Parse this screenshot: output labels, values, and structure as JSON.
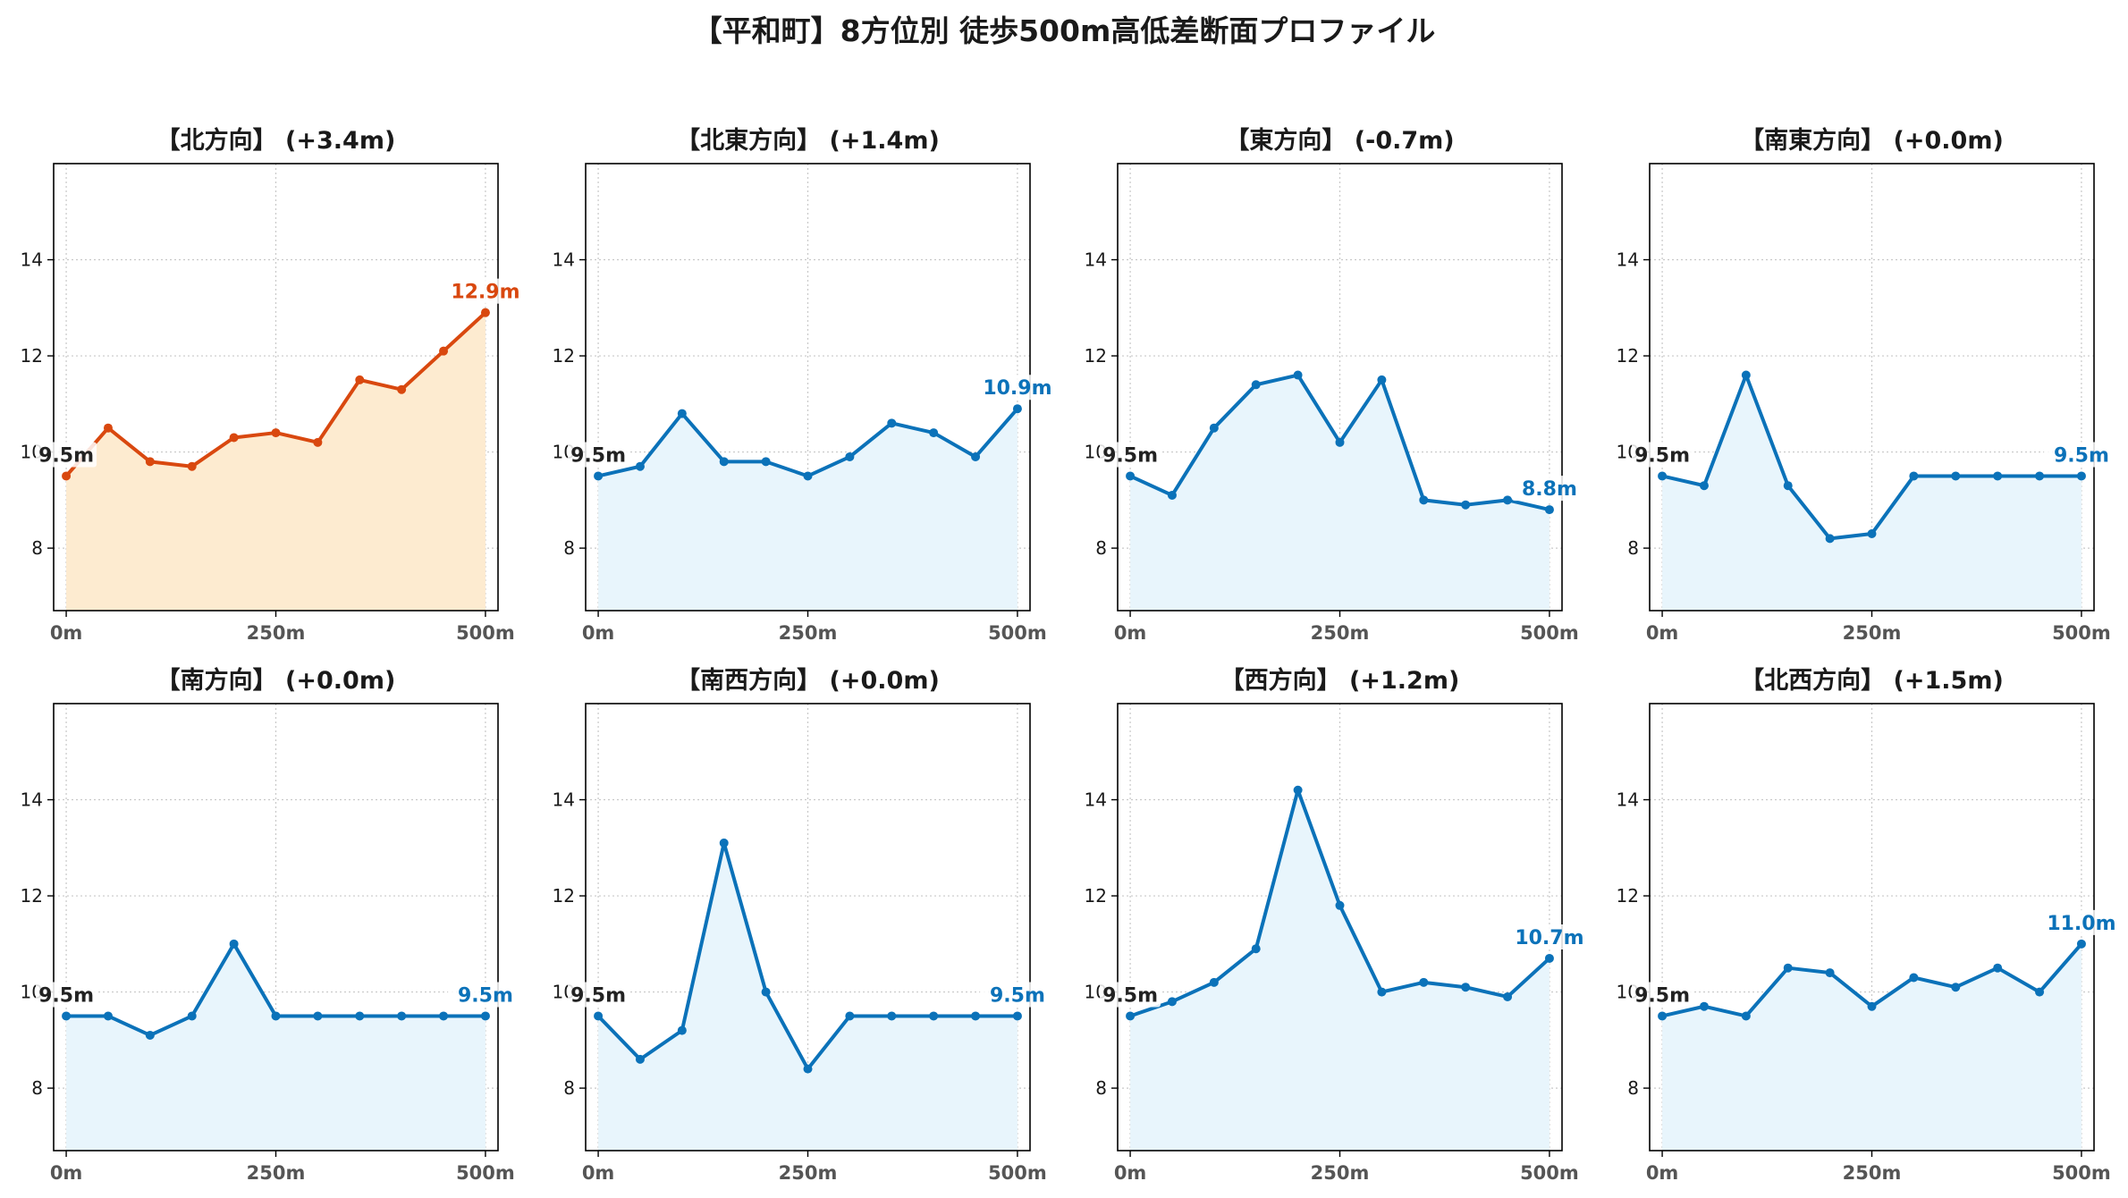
{
  "title": "【平和町】8方位別 徒歩500m高低差断面プロファイル",
  "colors": {
    "up_line": "#d9480f",
    "up_fill": "#fdebd0",
    "flat_line": "#0b72b9",
    "flat_fill": "#e8f5fc",
    "grid": "#c8c8c8",
    "start_label": "#222222"
  },
  "chart_data": [
    {
      "type": "area",
      "title": "【北方向】 (+3.4m)",
      "trend": "up",
      "x": [
        0,
        50,
        100,
        150,
        200,
        250,
        300,
        350,
        400,
        450,
        500
      ],
      "y": [
        9.5,
        10.5,
        9.8,
        9.7,
        10.3,
        10.4,
        10.2,
        11.5,
        11.3,
        12.1,
        12.9
      ],
      "start_label": "9.5m",
      "end_label": "12.9m",
      "xticks": [
        "0m",
        "250m",
        "500m"
      ],
      "yticks": [
        "8",
        "10",
        "12",
        "14"
      ],
      "xlim": [
        -15,
        515
      ],
      "ylim": [
        6.7,
        16.0
      ],
      "grid": true
    },
    {
      "type": "area",
      "title": "【北東方向】 (+1.4m)",
      "trend": "flat",
      "x": [
        0,
        50,
        100,
        150,
        200,
        250,
        300,
        350,
        400,
        450,
        500
      ],
      "y": [
        9.5,
        9.7,
        10.8,
        9.8,
        9.8,
        9.5,
        9.9,
        10.6,
        10.4,
        9.9,
        10.9
      ],
      "start_label": "9.5m",
      "end_label": "10.9m",
      "xticks": [
        "0m",
        "250m",
        "500m"
      ],
      "yticks": [
        "8",
        "10",
        "12",
        "14"
      ],
      "xlim": [
        -15,
        515
      ],
      "ylim": [
        6.7,
        16.0
      ],
      "grid": true
    },
    {
      "type": "area",
      "title": "【東方向】 (-0.7m)",
      "trend": "flat",
      "x": [
        0,
        50,
        100,
        150,
        200,
        250,
        300,
        350,
        400,
        450,
        500
      ],
      "y": [
        9.5,
        9.1,
        10.5,
        11.4,
        11.6,
        10.2,
        11.5,
        9.0,
        8.9,
        9.0,
        8.8
      ],
      "start_label": "9.5m",
      "end_label": "8.8m",
      "xticks": [
        "0m",
        "250m",
        "500m"
      ],
      "yticks": [
        "8",
        "10",
        "12",
        "14"
      ],
      "xlim": [
        -15,
        515
      ],
      "ylim": [
        6.7,
        16.0
      ],
      "grid": true
    },
    {
      "type": "area",
      "title": "【南東方向】 (+0.0m)",
      "trend": "flat",
      "x": [
        0,
        50,
        100,
        150,
        200,
        250,
        300,
        350,
        400,
        450,
        500
      ],
      "y": [
        9.5,
        9.3,
        11.6,
        9.3,
        8.2,
        8.3,
        9.5,
        9.5,
        9.5,
        9.5,
        9.5
      ],
      "start_label": "9.5m",
      "end_label": "9.5m",
      "xticks": [
        "0m",
        "250m",
        "500m"
      ],
      "yticks": [
        "8",
        "10",
        "12",
        "14"
      ],
      "xlim": [
        -15,
        515
      ],
      "ylim": [
        6.7,
        16.0
      ],
      "grid": true
    },
    {
      "type": "area",
      "title": "【南方向】 (+0.0m)",
      "trend": "flat",
      "x": [
        0,
        50,
        100,
        150,
        200,
        250,
        300,
        350,
        400,
        450,
        500
      ],
      "y": [
        9.5,
        9.5,
        9.1,
        9.5,
        11.0,
        9.5,
        9.5,
        9.5,
        9.5,
        9.5,
        9.5
      ],
      "start_label": "9.5m",
      "end_label": "9.5m",
      "xticks": [
        "0m",
        "250m",
        "500m"
      ],
      "yticks": [
        "8",
        "10",
        "12",
        "14"
      ],
      "xlim": [
        -15,
        515
      ],
      "ylim": [
        6.7,
        16.0
      ],
      "grid": true
    },
    {
      "type": "area",
      "title": "【南西方向】 (+0.0m)",
      "trend": "flat",
      "x": [
        0,
        50,
        100,
        150,
        200,
        250,
        300,
        350,
        400,
        450,
        500
      ],
      "y": [
        9.5,
        8.6,
        9.2,
        13.1,
        10.0,
        8.4,
        9.5,
        9.5,
        9.5,
        9.5,
        9.5
      ],
      "start_label": "9.5m",
      "end_label": "9.5m",
      "xticks": [
        "0m",
        "250m",
        "500m"
      ],
      "yticks": [
        "8",
        "10",
        "12",
        "14"
      ],
      "xlim": [
        -15,
        515
      ],
      "ylim": [
        6.7,
        16.0
      ],
      "grid": true
    },
    {
      "type": "area",
      "title": "【西方向】 (+1.2m)",
      "trend": "flat",
      "x": [
        0,
        50,
        100,
        150,
        200,
        250,
        300,
        350,
        400,
        450,
        500
      ],
      "y": [
        9.5,
        9.8,
        10.2,
        10.9,
        14.2,
        11.8,
        10.0,
        10.2,
        10.1,
        9.9,
        10.7
      ],
      "start_label": "9.5m",
      "end_label": "10.7m",
      "xticks": [
        "0m",
        "250m",
        "500m"
      ],
      "yticks": [
        "8",
        "10",
        "12",
        "14"
      ],
      "xlim": [
        -15,
        515
      ],
      "ylim": [
        6.7,
        16.0
      ],
      "grid": true
    },
    {
      "type": "area",
      "title": "【北西方向】 (+1.5m)",
      "trend": "flat",
      "x": [
        0,
        50,
        100,
        150,
        200,
        250,
        300,
        350,
        400,
        450,
        500
      ],
      "y": [
        9.5,
        9.7,
        9.5,
        10.5,
        10.4,
        9.7,
        10.3,
        10.1,
        10.5,
        10.0,
        11.0
      ],
      "start_label": "9.5m",
      "end_label": "11.0m",
      "xticks": [
        "0m",
        "250m",
        "500m"
      ],
      "yticks": [
        "8",
        "10",
        "12",
        "14"
      ],
      "xlim": [
        -15,
        515
      ],
      "ylim": [
        6.7,
        16.0
      ],
      "grid": true
    }
  ]
}
